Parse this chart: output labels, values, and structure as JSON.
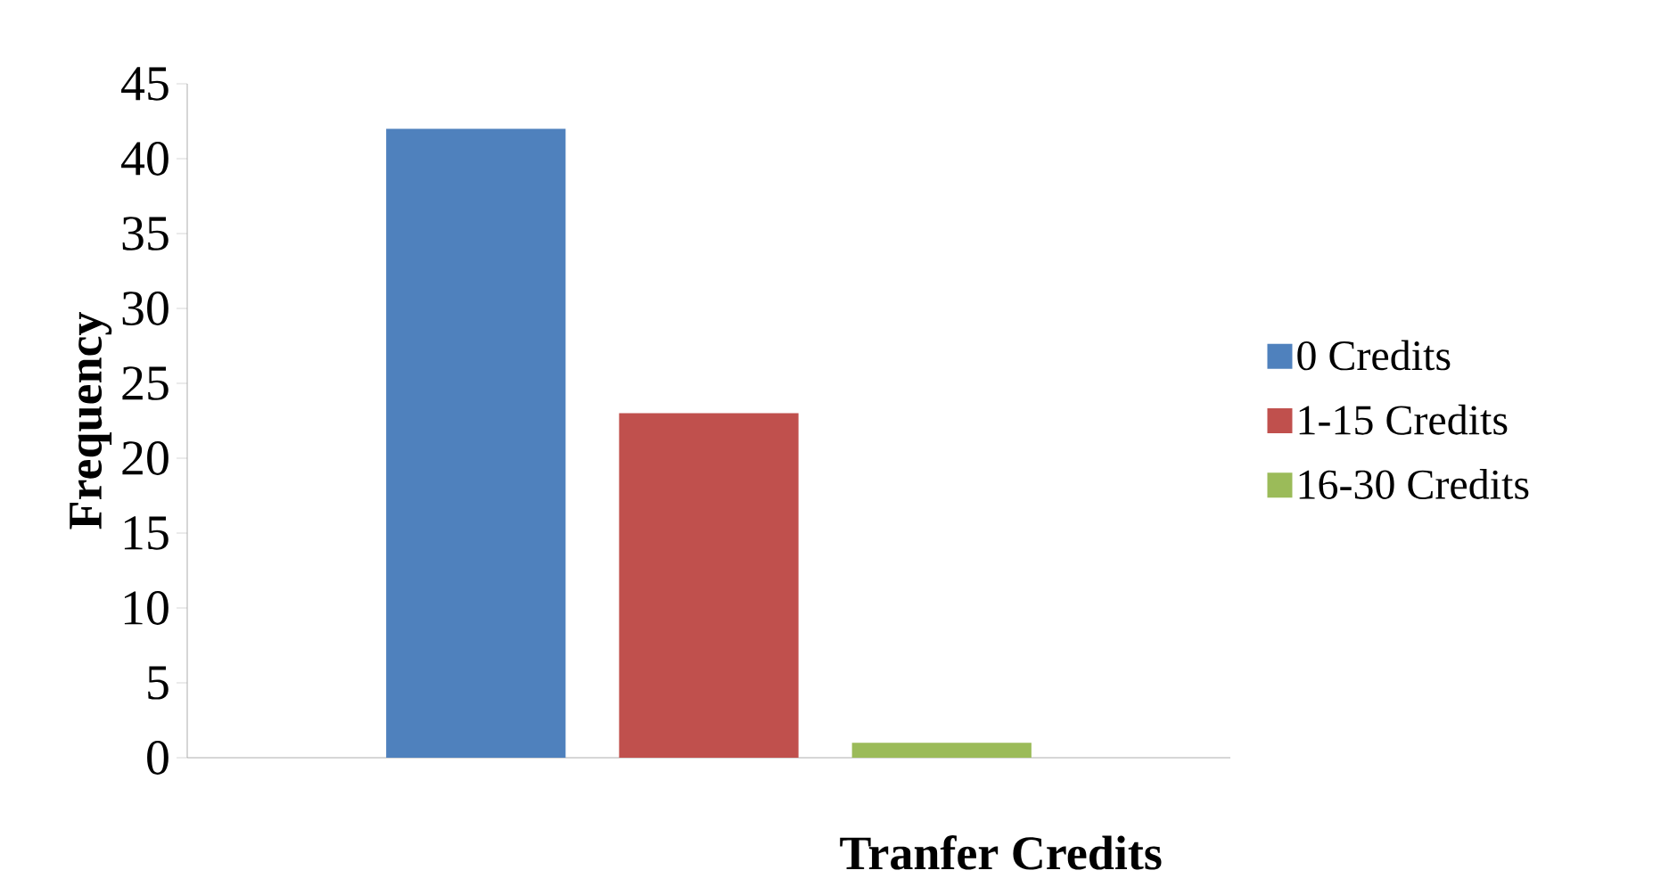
{
  "chart_data": {
    "type": "bar",
    "xlabel": "Tranfer Credits",
    "ylabel": "Frequency",
    "categories": [
      null
    ],
    "series": [
      {
        "name": "0 Credits",
        "color": "#4f81bd",
        "values": [
          42
        ]
      },
      {
        "name": "1-15 Credits",
        "color": "#c0504d",
        "values": [
          23
        ]
      },
      {
        "name": "16-30 Credits",
        "color": "#9bbb59",
        "values": [
          1
        ]
      }
    ],
    "ylim": [
      0,
      45
    ],
    "yticks": [
      0,
      5,
      10,
      15,
      20,
      25,
      30,
      35,
      40,
      45
    ],
    "grid": false,
    "legend": "right"
  }
}
